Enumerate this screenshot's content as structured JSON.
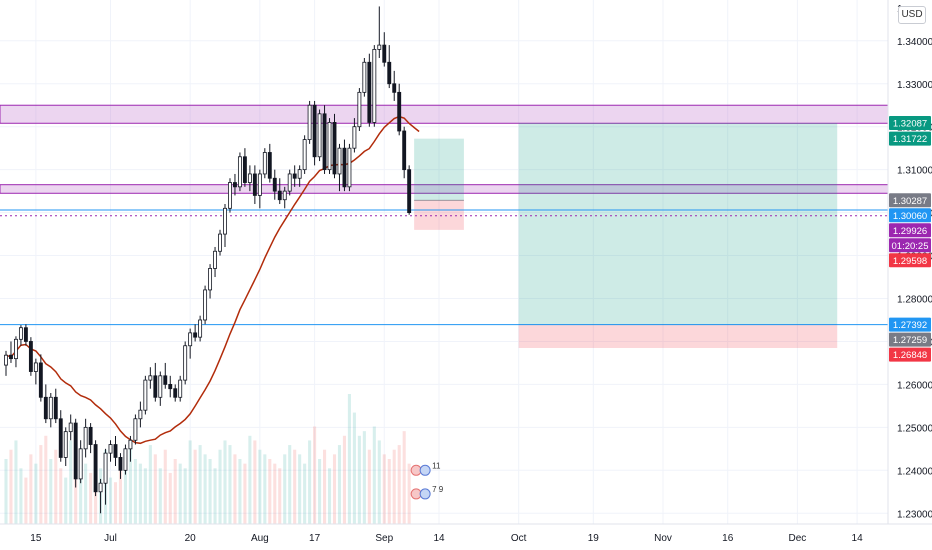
{
  "currency_button": "USD",
  "top_price_partial": "1.",
  "chart_data": {
    "type": "candlestick",
    "title": "",
    "ylim": [
      1.2275,
      1.3495
    ],
    "y_ticks": [
      "1.34000",
      "1.33000",
      "1.32000",
      "1.31000",
      "1.30000",
      "1.29000",
      "1.28000",
      "1.27000",
      "1.26000",
      "1.25000",
      "1.24000",
      "1.23000"
    ],
    "y_tick_values": [
      1.34,
      1.33,
      1.32,
      1.31,
      1.3,
      1.29,
      1.28,
      1.27,
      1.26,
      1.25,
      1.24,
      1.23
    ],
    "x_ticks": [
      "15",
      "Jul",
      "20",
      "Aug",
      "17",
      "Sep",
      "14",
      "Oct",
      "19",
      "Nov",
      "16",
      "Dec",
      "14"
    ],
    "x_tick_index": [
      6,
      21,
      37,
      51,
      62,
      76,
      87,
      103,
      118,
      132,
      145,
      159,
      171
    ],
    "x_range": [
      0,
      176
    ],
    "bullish_color": "#ffffff",
    "bearish_color": "#131722",
    "ma_color": "#b22c0b",
    "candles": [
      [
        1.2645,
        1.2678,
        1.262,
        1.2668
      ],
      [
        1.2668,
        1.27,
        1.265,
        1.266
      ],
      [
        1.266,
        1.2712,
        1.264,
        1.2705
      ],
      [
        1.2705,
        1.2738,
        1.269,
        1.2732
      ],
      [
        1.2732,
        1.274,
        1.269,
        1.27
      ],
      [
        1.27,
        1.271,
        1.262,
        1.263
      ],
      [
        1.263,
        1.266,
        1.26,
        1.265
      ],
      [
        1.265,
        1.267,
        1.256,
        1.257
      ],
      [
        1.257,
        1.26,
        1.251,
        1.252
      ],
      [
        1.252,
        1.258,
        1.25,
        1.257
      ],
      [
        1.257,
        1.259,
        1.251,
        1.252
      ],
      [
        1.252,
        1.254,
        1.242,
        1.243
      ],
      [
        1.243,
        1.25,
        1.241,
        1.249
      ],
      [
        1.249,
        1.253,
        1.247,
        1.251
      ],
      [
        1.251,
        1.252,
        1.236,
        1.238
      ],
      [
        1.238,
        1.247,
        1.237,
        1.245
      ],
      [
        1.245,
        1.252,
        1.243,
        1.25
      ],
      [
        1.25,
        1.251,
        1.244,
        1.246
      ],
      [
        1.246,
        1.247,
        1.234,
        1.235
      ],
      [
        1.235,
        1.238,
        1.23,
        1.237
      ],
      [
        1.237,
        1.245,
        1.232,
        1.244
      ],
      [
        1.244,
        1.247,
        1.242,
        1.246
      ],
      [
        1.246,
        1.248,
        1.241,
        1.243
      ],
      [
        1.243,
        1.244,
        1.238,
        1.24
      ],
      [
        1.24,
        1.246,
        1.239,
        1.245
      ],
      [
        1.245,
        1.248,
        1.242,
        1.247
      ],
      [
        1.247,
        1.253,
        1.246,
        1.252
      ],
      [
        1.252,
        1.256,
        1.25,
        1.254
      ],
      [
        1.254,
        1.262,
        1.253,
        1.261
      ],
      [
        1.261,
        1.264,
        1.259,
        1.262
      ],
      [
        1.262,
        1.265,
        1.256,
        1.257
      ],
      [
        1.257,
        1.263,
        1.255,
        1.262
      ],
      [
        1.262,
        1.265,
        1.259,
        1.26
      ],
      [
        1.26,
        1.262,
        1.257,
        1.259
      ],
      [
        1.259,
        1.26,
        1.256,
        1.257
      ],
      [
        1.257,
        1.262,
        1.256,
        1.261
      ],
      [
        1.261,
        1.27,
        1.26,
        1.269
      ],
      [
        1.269,
        1.273,
        1.266,
        1.272
      ],
      [
        1.272,
        1.274,
        1.27,
        1.271
      ],
      [
        1.271,
        1.276,
        1.27,
        1.275
      ],
      [
        1.275,
        1.283,
        1.274,
        1.282
      ],
      [
        1.282,
        1.288,
        1.28,
        1.287
      ],
      [
        1.287,
        1.292,
        1.285,
        1.291
      ],
      [
        1.291,
        1.296,
        1.29,
        1.295
      ],
      [
        1.295,
        1.302,
        1.292,
        1.301
      ],
      [
        1.301,
        1.308,
        1.3,
        1.307
      ],
      [
        1.307,
        1.309,
        1.304,
        1.306
      ],
      [
        1.306,
        1.314,
        1.305,
        1.313
      ],
      [
        1.313,
        1.315,
        1.306,
        1.307
      ],
      [
        1.307,
        1.311,
        1.305,
        1.309
      ],
      [
        1.309,
        1.311,
        1.302,
        1.304
      ],
      [
        1.304,
        1.31,
        1.301,
        1.309
      ],
      [
        1.309,
        1.315,
        1.308,
        1.314
      ],
      [
        1.314,
        1.316,
        1.307,
        1.308
      ],
      [
        1.308,
        1.31,
        1.303,
        1.305
      ],
      [
        1.305,
        1.308,
        1.302,
        1.303
      ],
      [
        1.303,
        1.306,
        1.301,
        1.305
      ],
      [
        1.305,
        1.31,
        1.304,
        1.309
      ],
      [
        1.309,
        1.311,
        1.306,
        1.308
      ],
      [
        1.308,
        1.311,
        1.306,
        1.31
      ],
      [
        1.31,
        1.318,
        1.309,
        1.317
      ],
      [
        1.317,
        1.326,
        1.316,
        1.325
      ],
      [
        1.325,
        1.326,
        1.311,
        1.313
      ],
      [
        1.313,
        1.324,
        1.312,
        1.323
      ],
      [
        1.323,
        1.325,
        1.309,
        1.31
      ],
      [
        1.31,
        1.322,
        1.309,
        1.321
      ],
      [
        1.321,
        1.323,
        1.308,
        1.309
      ],
      [
        1.309,
        1.316,
        1.305,
        1.315
      ],
      [
        1.315,
        1.317,
        1.305,
        1.306
      ],
      [
        1.306,
        1.316,
        1.305,
        1.315
      ],
      [
        1.315,
        1.322,
        1.314,
        1.32
      ],
      [
        1.32,
        1.329,
        1.319,
        1.328
      ],
      [
        1.328,
        1.336,
        1.327,
        1.335
      ],
      [
        1.335,
        1.337,
        1.32,
        1.321
      ],
      [
        1.321,
        1.339,
        1.32,
        1.338
      ],
      [
        1.338,
        1.348,
        1.336,
        1.339
      ],
      [
        1.339,
        1.342,
        1.334,
        1.335
      ],
      [
        1.335,
        1.339,
        1.329,
        1.33
      ],
      [
        1.33,
        1.333,
        1.326,
        1.328
      ],
      [
        1.328,
        1.33,
        1.318,
        1.319
      ],
      [
        1.319,
        1.32,
        1.308,
        1.31
      ],
      [
        1.31,
        1.311,
        1.2995,
        1.3
      ]
    ],
    "volume": [
      14,
      16,
      18,
      12,
      10,
      15,
      13,
      17,
      19,
      14,
      16,
      12,
      10,
      18,
      20,
      15,
      13,
      11,
      14,
      12,
      16,
      10,
      9,
      12,
      15,
      18,
      14,
      13,
      12,
      17,
      15,
      12,
      16,
      11,
      14,
      13,
      12,
      18,
      16,
      17,
      15,
      14,
      12,
      16,
      18,
      17,
      15,
      14,
      13,
      19,
      18,
      16,
      15,
      14,
      13,
      12,
      15,
      17,
      16,
      15,
      13,
      18,
      21,
      14,
      16,
      12,
      15,
      17,
      19,
      28,
      24,
      19,
      20,
      16,
      21,
      18,
      15,
      14,
      16,
      17,
      20,
      13
    ],
    "moving_average_series_ends": 83,
    "levels": [
      {
        "price": 1.3006,
        "color": "#2196f3"
      },
      {
        "price": 1.27392,
        "color": "#2196f3"
      },
      {
        "price": 1.29926,
        "color": "#9c27b0"
      }
    ],
    "zones": [
      {
        "top": 1.325,
        "bottom": 1.3208,
        "fill": "rgba(186,104,200,0.28)",
        "stroke": "#9c27b0"
      },
      {
        "top": 1.3065,
        "bottom": 1.3045,
        "fill": "rgba(186,104,200,0.28)",
        "stroke": "#9c27b0"
      }
    ],
    "positions": [
      {
        "from": 82,
        "to": 92,
        "entry": 1.30287,
        "target": 1.31722,
        "stop": 1.29598
      },
      {
        "from": 103,
        "to": 167,
        "entry": 1.27392,
        "target": 1.32087,
        "stop": 1.26848
      }
    ],
    "price_labels": [
      {
        "text": "1.32087",
        "price": 1.32087,
        "bg": "#089981",
        "fg": "#ffffff"
      },
      {
        "text": "1.31722",
        "price": 1.31722,
        "bg": "#089981",
        "fg": "#ffffff"
      },
      {
        "text": "1.30287",
        "price": 1.30287,
        "bg": "#787b86",
        "fg": "#ffffff"
      },
      {
        "text": "1.30060",
        "price": 1.3006,
        "bg": "#2196f3",
        "fg": "#ffffff"
      },
      {
        "text": "1.29926",
        "price": 1.29926,
        "bg": "#9c27b0",
        "fg": "#ffffff"
      },
      {
        "text": "01:20:25",
        "price": 1.2977,
        "bg": "#9c27b0",
        "fg": "#ffffff"
      },
      {
        "text": "1.29598",
        "price": 1.29598,
        "bg": "#f23645",
        "fg": "#ffffff"
      },
      {
        "text": "1.27392",
        "price": 1.27392,
        "bg": "#2196f3",
        "fg": "#ffffff"
      },
      {
        "text": "1.27259",
        "price": 1.27259,
        "bg": "#787b86",
        "fg": "#ffffff"
      },
      {
        "text": "1.26848",
        "price": 1.26848,
        "bg": "#f23645",
        "fg": "#ffffff"
      }
    ],
    "event_markers": [
      {
        "index": 82,
        "label": "11",
        "price": 1.24
      },
      {
        "index": 82,
        "label": "7 9",
        "price": 1.2345
      }
    ]
  }
}
